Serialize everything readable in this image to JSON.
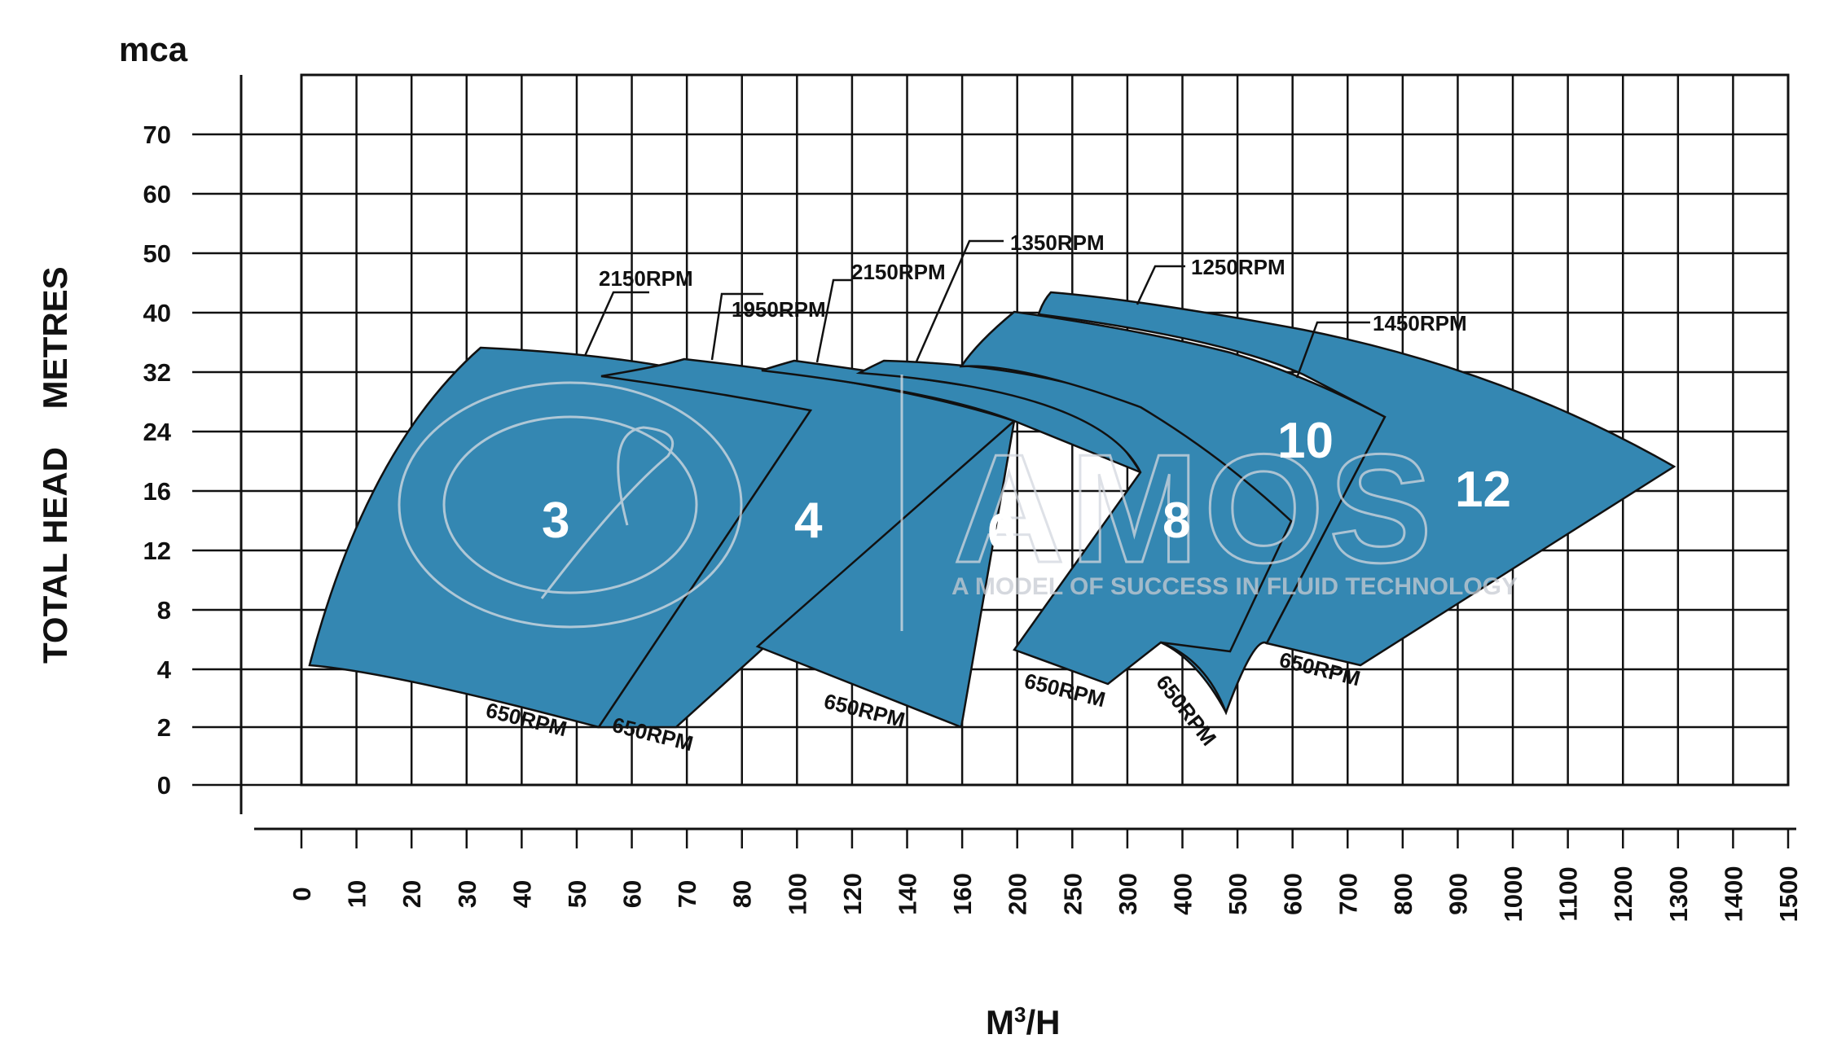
{
  "chart_data": {
    "type": "area",
    "unit_label": "mca",
    "ylabel": "TOTAL HEAD    METRES",
    "xlabel": "M³/H",
    "x_ticks": [
      "0",
      "10",
      "20",
      "30",
      "40",
      "50",
      "60",
      "70",
      "80",
      "100",
      "120",
      "140",
      "160",
      "200",
      "250",
      "300",
      "400",
      "500",
      "600",
      "700",
      "800",
      "900",
      "1000",
      "1100",
      "1200",
      "1300",
      "1400",
      "1500"
    ],
    "y_ticks": [
      "0",
      "2",
      "4",
      "8",
      "12",
      "16",
      "24",
      "32",
      "40",
      "50",
      "60",
      "70"
    ],
    "grid": true,
    "fill_color": "#3487b2",
    "watermark": {
      "logo_text": "AMOS",
      "tagline": "A MODEL OF SUCCESS IN FLUID TECHNOLOGY"
    },
    "zones": [
      {
        "name": "3",
        "max_speed": "2150RPM",
        "min_speed": "650RPM",
        "upper_curve": [
          [
            3,
            35
          ],
          [
            20,
            33
          ],
          [
            35,
            30
          ],
          [
            46,
            26
          ]
        ],
        "lower_curve": [
          [
            0,
            4
          ],
          [
            20,
            3.6
          ],
          [
            40,
            2.8
          ],
          [
            55,
            2
          ]
        ]
      },
      {
        "name": "4",
        "max_speed": "1950RPM",
        "min_speed": "650RPM",
        "upper_curve": [
          [
            70,
            33
          ],
          [
            100,
            30.5
          ],
          [
            130,
            27
          ],
          [
            180,
            24
          ]
        ],
        "lower_curve": [
          [
            55,
            2.9
          ],
          [
            69,
            2
          ]
        ]
      },
      {
        "name": "6",
        "max_speed": "2150RPM",
        "min_speed": "650RPM",
        "upper_curve": [
          [
            100,
            33
          ],
          [
            150,
            30
          ],
          [
            200,
            27
          ],
          [
            300,
            20
          ]
        ],
        "lower_curve": [
          [
            130,
            3
          ],
          [
            160,
            2
          ]
        ]
      },
      {
        "name": "8",
        "max_speed": "1350RPM",
        "min_speed": "650RPM",
        "upper_curve": [
          [
            130,
            33
          ],
          [
            250,
            32
          ],
          [
            350,
            28
          ],
          [
            600,
            13
          ]
        ],
        "lower_curve": [
          [
            200,
            3.2
          ],
          [
            275,
            3
          ]
        ]
      },
      {
        "name": "10",
        "max_speed": "1250RPM",
        "min_speed": "650RPM",
        "upper_curve": [
          [
            200,
            40
          ],
          [
            300,
            37
          ],
          [
            500,
            33
          ],
          [
            750,
            25
          ]
        ],
        "lower_curve": [
          [
            400,
            3
          ],
          [
            490,
            2.5
          ]
        ]
      },
      {
        "name": "12",
        "max_speed": "1450RPM",
        "min_speed": "650RPM",
        "upper_curve": [
          [
            240,
            43
          ],
          [
            500,
            37
          ],
          [
            1000,
            27
          ],
          [
            1300,
            18
          ]
        ],
        "lower_curve": [
          [
            650,
            4.2
          ],
          [
            730,
            4
          ]
        ]
      }
    ],
    "rpm_labels": {
      "top": [
        "2150RPM",
        "1950RPM",
        "2150RPM",
        "1350RPM",
        "1250RPM",
        "1450RPM"
      ],
      "bottom": [
        "650RPM",
        "650RPM",
        "650RPM",
        "650RPM",
        "650RPM",
        "650RPM"
      ]
    }
  }
}
